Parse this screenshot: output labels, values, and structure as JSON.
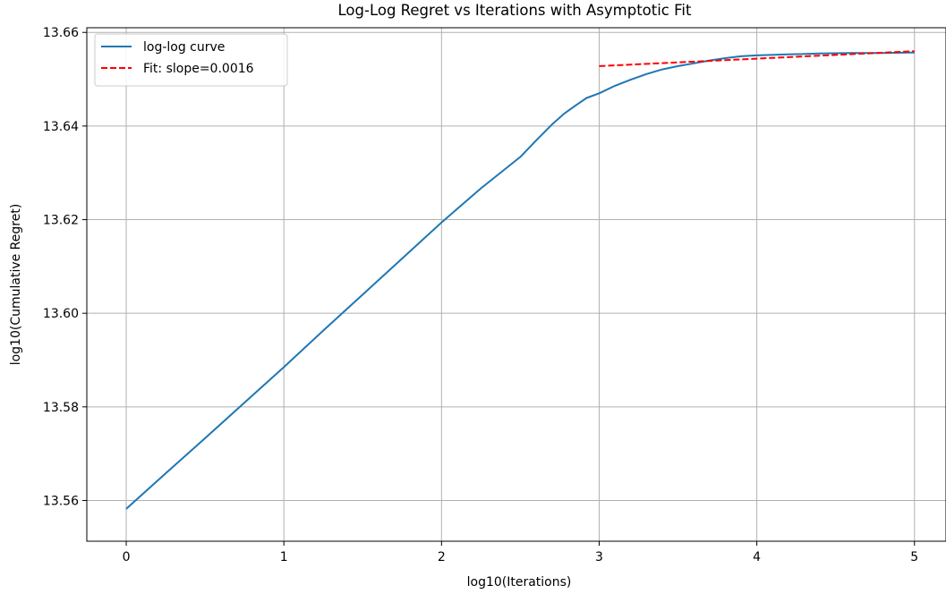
{
  "chart_data": {
    "type": "line",
    "title": "Log-Log Regret vs Iterations with Asymptotic Fit",
    "xlabel": "log10(Iterations)",
    "ylabel": "log10(Cumulative Regret)",
    "xlim": [
      -0.25,
      5.2
    ],
    "ylim": [
      13.5513,
      13.661
    ],
    "xticks": [
      0,
      1,
      2,
      3,
      4,
      5
    ],
    "xtick_labels": [
      "0",
      "1",
      "2",
      "3",
      "4",
      "5"
    ],
    "yticks": [
      13.56,
      13.58,
      13.6,
      13.62,
      13.64,
      13.66
    ],
    "ytick_labels": [
      "13.56",
      "13.58",
      "13.60",
      "13.62",
      "13.64",
      "13.66"
    ],
    "grid": true,
    "legend_position": "upper-left",
    "series": [
      {
        "name": "log-log curve",
        "color": "#1f77b4",
        "style": "solid",
        "x": [
          0,
          0.25,
          0.5,
          0.75,
          1.0,
          1.25,
          1.5,
          1.75,
          2.0,
          2.25,
          2.5,
          2.6,
          2.7,
          2.78,
          2.85,
          2.92,
          3.0,
          3.1,
          3.2,
          3.3,
          3.4,
          3.5,
          3.6,
          3.7,
          3.8,
          3.9,
          4.0,
          4.2,
          4.4,
          4.6,
          4.8,
          5.0
        ],
        "y": [
          13.5582,
          13.5658,
          13.5733,
          13.5809,
          13.5885,
          13.5963,
          13.604,
          13.6117,
          13.6194,
          13.6267,
          13.6334,
          13.6369,
          13.6403,
          13.6427,
          13.6444,
          13.646,
          13.647,
          13.6486,
          13.6499,
          13.6511,
          13.6521,
          13.6528,
          13.6534,
          13.654,
          13.6545,
          13.6549,
          13.6551,
          13.6553,
          13.6555,
          13.6556,
          13.6556,
          13.6557
        ]
      },
      {
        "name": "Fit: slope=0.0016",
        "color": "#ff0000",
        "style": "dashed",
        "x": [
          3.0,
          5.0
        ],
        "y": [
          13.6528,
          13.656
        ]
      }
    ]
  }
}
